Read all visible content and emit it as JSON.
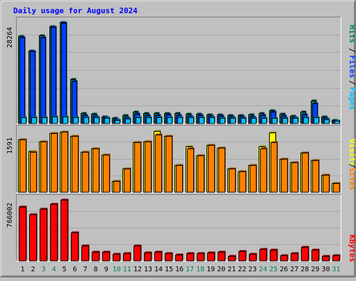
{
  "chart_data": [
    {
      "type": "bar",
      "title": "Daily usage for August 2024",
      "panel": "hits-files-pages",
      "categories": [
        "1",
        "2",
        "3",
        "4",
        "5",
        "6",
        "7",
        "8",
        "9",
        "10",
        "11",
        "12",
        "13",
        "14",
        "15",
        "16",
        "17",
        "18",
        "19",
        "20",
        "21",
        "22",
        "23",
        "24",
        "25",
        "26",
        "27",
        "28",
        "29",
        "30",
        "31"
      ],
      "weekend_days": [
        "3",
        "4",
        "10",
        "11",
        "17",
        "18",
        "24",
        "25",
        "31"
      ],
      "ymax_label": "28264",
      "ylim": [
        0,
        28264
      ],
      "grid": true,
      "legend": [
        "Pages",
        "Files",
        "Hits"
      ],
      "series": [
        {
          "name": "Hits",
          "color": "#00805c",
          "values": [
            24300,
            20400,
            24500,
            27100,
            28264,
            12400,
            3000,
            2800,
            2000,
            1500,
            2300,
            3300,
            2900,
            2900,
            3000,
            2900,
            2800,
            2800,
            2600,
            2600,
            2300,
            2400,
            2600,
            3000,
            3600,
            2800,
            2100,
            3200,
            6300,
            2000,
            1000
          ]
        },
        {
          "name": "Files",
          "color": "#0040ff",
          "values": [
            24000,
            20100,
            24100,
            27000,
            28100,
            11800,
            2400,
            2200,
            1700,
            1100,
            1800,
            2700,
            2300,
            2400,
            2500,
            2400,
            2100,
            2300,
            2200,
            2100,
            1900,
            2000,
            2000,
            2400,
            3200,
            2200,
            1800,
            2500,
            5600,
            1500,
            800
          ]
        },
        {
          "name": "Pages",
          "color": "#00c0ff",
          "values": [
            1800,
            1800,
            1800,
            1900,
            1900,
            1800,
            1800,
            1700,
            1500,
            1000,
            1400,
            1800,
            1800,
            1800,
            1800,
            1800,
            1700,
            1800,
            1700,
            1600,
            1600,
            1500,
            1500,
            1500,
            1500,
            1600,
            1600,
            1700,
            1700,
            1200,
            700
          ]
        }
      ]
    },
    {
      "type": "bar",
      "panel": "sites-visits",
      "categories": [
        "1",
        "2",
        "3",
        "4",
        "5",
        "6",
        "7",
        "8",
        "9",
        "10",
        "11",
        "12",
        "13",
        "14",
        "15",
        "16",
        "17",
        "18",
        "19",
        "20",
        "21",
        "22",
        "23",
        "24",
        "25",
        "26",
        "27",
        "28",
        "29",
        "30",
        "31"
      ],
      "ymax_label": "1591",
      "ylim": [
        0,
        1591
      ],
      "grid": true,
      "legend": [
        "Sites",
        "Visits"
      ],
      "series": [
        {
          "name": "Visits",
          "color": "#ffff00",
          "values": [
            1360,
            1050,
            1300,
            1520,
            1560,
            1440,
            1030,
            1120,
            960,
            290,
            600,
            1290,
            1310,
            1570,
            1450,
            700,
            1180,
            950,
            1210,
            1150,
            600,
            530,
            700,
            1180,
            1540,
            860,
            760,
            1020,
            820,
            440,
            230
          ]
        },
        {
          "name": "Sites",
          "color": "#ff8000",
          "values": [
            1360,
            1040,
            1300,
            1520,
            1560,
            1440,
            1030,
            1120,
            960,
            290,
            600,
            1290,
            1310,
            1480,
            1450,
            700,
            1130,
            950,
            1210,
            1150,
            600,
            530,
            700,
            1120,
            1290,
            860,
            760,
            1020,
            820,
            440,
            230
          ]
        }
      ]
    },
    {
      "type": "bar",
      "panel": "kbytes",
      "categories": [
        "1",
        "2",
        "3",
        "4",
        "5",
        "6",
        "7",
        "8",
        "9",
        "10",
        "11",
        "12",
        "13",
        "14",
        "15",
        "16",
        "17",
        "18",
        "19",
        "20",
        "21",
        "22",
        "23",
        "24",
        "25",
        "26",
        "27",
        "28",
        "29",
        "30",
        "31"
      ],
      "ymax_label": "766002",
      "ylim": [
        0,
        766002
      ],
      "grid": true,
      "legend": [
        "KBytes"
      ],
      "series": [
        {
          "name": "KBytes",
          "color": "#ff0000",
          "values": [
            676000,
            583000,
            652000,
            712000,
            766002,
            358000,
            192000,
            117000,
            110000,
            90000,
            95000,
            190000,
            107000,
            112000,
            95000,
            82000,
            95000,
            95000,
            104000,
            117000,
            57000,
            125000,
            91000,
            148000,
            142000,
            71000,
            100000,
            176000,
            137000,
            62000,
            72000
          ]
        }
      ]
    }
  ],
  "colors": {
    "background": "#c0c0c0",
    "title_text": "#0000ff",
    "grid": "#a8a8a8",
    "bar_outline": "#000000",
    "weekday_label": "#000000",
    "weekend_label": "#00805c"
  }
}
